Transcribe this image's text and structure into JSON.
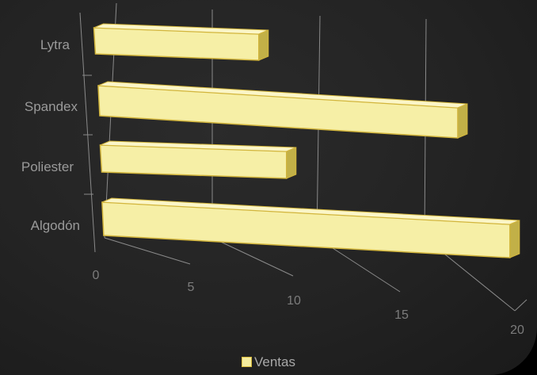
{
  "chart_data": {
    "type": "bar",
    "orientation": "horizontal",
    "style": "3d",
    "categories": [
      "Lytra",
      "Spandex",
      "Poliester",
      "Algodón"
    ],
    "series": [
      {
        "name": "Ventas",
        "values": [
          10,
          20,
          10,
          20
        ]
      }
    ],
    "x_ticks": [
      "0",
      "5",
      "10",
      "15",
      "20"
    ],
    "xlim": [
      0,
      20
    ],
    "grid": true,
    "legend": "bottom",
    "colors": {
      "bar_face": "#f6efa6",
      "bar_edge": "#d2b53c",
      "bar_side": "#c2b047",
      "grid": "#8a8a8a"
    }
  }
}
